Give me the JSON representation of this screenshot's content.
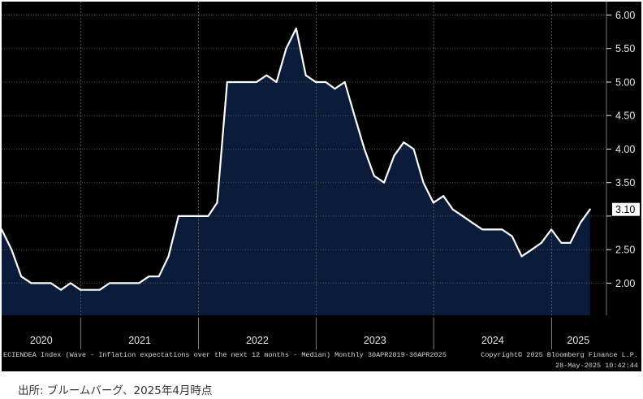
{
  "chart_data": {
    "type": "area",
    "title": "",
    "xlabel": "",
    "ylabel": "",
    "x": [
      "2020-04",
      "2020-05",
      "2020-06",
      "2020-07",
      "2020-08",
      "2020-09",
      "2020-10",
      "2020-11",
      "2020-12",
      "2021-01",
      "2021-02",
      "2021-03",
      "2021-04",
      "2021-05",
      "2021-06",
      "2021-07",
      "2021-08",
      "2021-09",
      "2021-10",
      "2021-11",
      "2021-12",
      "2022-01",
      "2022-02",
      "2022-03",
      "2022-04",
      "2022-05",
      "2022-06",
      "2022-07",
      "2022-08",
      "2022-09",
      "2022-10",
      "2022-11",
      "2022-12",
      "2023-01",
      "2023-02",
      "2023-03",
      "2023-04",
      "2023-05",
      "2023-06",
      "2023-07",
      "2023-08",
      "2023-09",
      "2023-10",
      "2023-11",
      "2023-12",
      "2024-01",
      "2024-02",
      "2024-03",
      "2024-04",
      "2024-05",
      "2024-06",
      "2024-07",
      "2024-08",
      "2024-09",
      "2024-10",
      "2024-11",
      "2024-12",
      "2025-01",
      "2025-02",
      "2025-03",
      "2025-04"
    ],
    "series": [
      {
        "values": [
          2.8,
          2.5,
          2.1,
          2.0,
          2.0,
          2.0,
          1.9,
          2.0,
          1.9,
          1.9,
          1.9,
          2.0,
          2.0,
          2.0,
          2.0,
          2.1,
          2.1,
          2.4,
          3.0,
          3.0,
          3.0,
          3.0,
          3.2,
          5.0,
          5.0,
          5.0,
          5.0,
          5.1,
          5.0,
          5.5,
          5.8,
          5.1,
          5.0,
          5.0,
          4.9,
          5.0,
          4.5,
          4.0,
          3.6,
          3.5,
          3.9,
          4.1,
          4.0,
          3.5,
          3.2,
          3.3,
          3.1,
          3.0,
          2.9,
          2.8,
          2.8,
          2.8,
          2.7,
          2.4,
          2.5,
          2.6,
          2.8,
          2.6,
          2.6,
          2.9,
          3.1
        ]
      }
    ],
    "xlim": [
      "2020-04-30",
      "2025-06-15"
    ],
    "ylim": [
      1.52,
      6.2
    ],
    "yaxis_side": "right",
    "ytick_labels": [
      "2.00",
      "2.50",
      "3.50",
      "4.00",
      "4.50",
      "5.00",
      "5.50",
      "6.00"
    ],
    "xtick_labels": [
      "2020",
      "2021",
      "2022",
      "2023",
      "2024",
      "2025"
    ],
    "last_value": 3.1,
    "last_value_label": "3.10",
    "grid": true,
    "legend": "none"
  },
  "footer": {
    "description": "ECIENDEA Index (Wave - Inflation expectations over the next 12 months - Median) Monthly 30APR2019-30APR2025",
    "copyright": "Copyright© 2025 Bloomberg Finance L.P.",
    "timestamp": "28-May-2025 10:42:44"
  },
  "source_note": "出所: ブルームバーグ、2025年4月時点",
  "colors": {
    "panel_background": "#000000",
    "area_fill": "#0b1c3a",
    "line": "#ffffff",
    "grid": "#555555",
    "axis_text": "#e8e8e8",
    "badge_background": "#ffffff",
    "badge_text": "#000000",
    "separator": "#7a7a7a"
  }
}
